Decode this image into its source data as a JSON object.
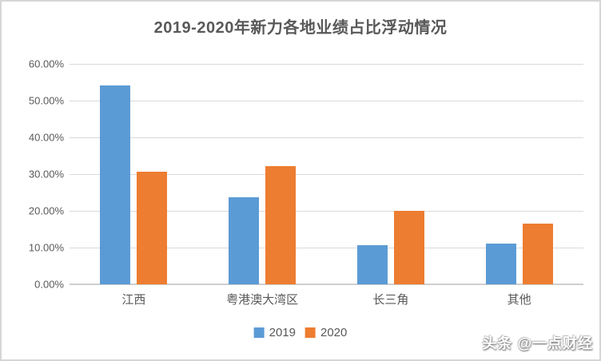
{
  "watermark": "头条 @一点财经",
  "colors": {
    "series_2019": "#5B9BD5",
    "series_2020": "#ED7D31",
    "gridline": "#D9D9D9",
    "axis_line": "#CFCFCF",
    "text": "#595959"
  },
  "chart_data": {
    "type": "bar",
    "title": "2019-2020年新力各地业绩占比浮动情况",
    "categories": [
      "江西",
      "粤港澳大湾区",
      "长三角",
      "其他"
    ],
    "series": [
      {
        "name": "2019",
        "color": "#5B9BD5",
        "values": [
          54.1,
          23.7,
          10.7,
          11.1
        ]
      },
      {
        "name": "2020",
        "color": "#ED7D31",
        "values": [
          30.6,
          32.2,
          20.0,
          16.5
        ]
      }
    ],
    "xlabel": "",
    "ylabel": "",
    "ylim": [
      0,
      60
    ],
    "ytick_step": 10,
    "ytick_labels": [
      "0.00%",
      "10.00%",
      "20.00%",
      "30.00%",
      "40.00%",
      "50.00%",
      "60.00%"
    ],
    "grid": true,
    "legend_position": "bottom-center"
  }
}
